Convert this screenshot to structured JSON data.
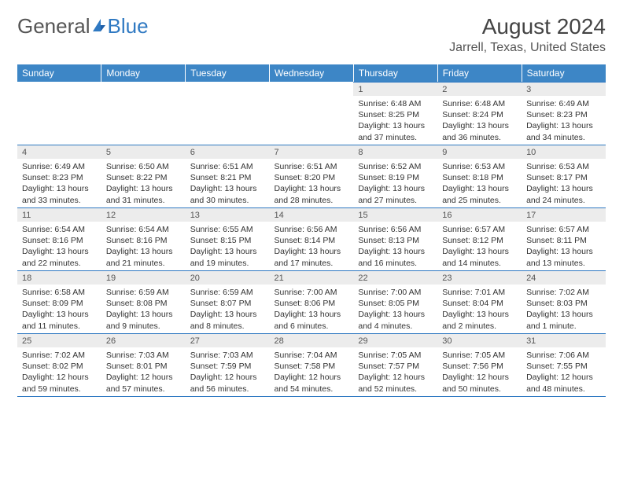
{
  "brand": {
    "part1": "General",
    "part2": "Blue"
  },
  "title": "August 2024",
  "location": "Jarrell, Texas, United States",
  "colors": {
    "header_bg": "#3d86c6",
    "accent": "#2f79c2",
    "daynum_bg": "#ececec",
    "text": "#333333"
  },
  "daysOfWeek": [
    "Sunday",
    "Monday",
    "Tuesday",
    "Wednesday",
    "Thursday",
    "Friday",
    "Saturday"
  ],
  "weeks": [
    [
      null,
      null,
      null,
      null,
      {
        "n": "1",
        "sr": "6:48 AM",
        "ss": "8:25 PM",
        "dl": "13 hours and 37 minutes."
      },
      {
        "n": "2",
        "sr": "6:48 AM",
        "ss": "8:24 PM",
        "dl": "13 hours and 36 minutes."
      },
      {
        "n": "3",
        "sr": "6:49 AM",
        "ss": "8:23 PM",
        "dl": "13 hours and 34 minutes."
      }
    ],
    [
      {
        "n": "4",
        "sr": "6:49 AM",
        "ss": "8:23 PM",
        "dl": "13 hours and 33 minutes."
      },
      {
        "n": "5",
        "sr": "6:50 AM",
        "ss": "8:22 PM",
        "dl": "13 hours and 31 minutes."
      },
      {
        "n": "6",
        "sr": "6:51 AM",
        "ss": "8:21 PM",
        "dl": "13 hours and 30 minutes."
      },
      {
        "n": "7",
        "sr": "6:51 AM",
        "ss": "8:20 PM",
        "dl": "13 hours and 28 minutes."
      },
      {
        "n": "8",
        "sr": "6:52 AM",
        "ss": "8:19 PM",
        "dl": "13 hours and 27 minutes."
      },
      {
        "n": "9",
        "sr": "6:53 AM",
        "ss": "8:18 PM",
        "dl": "13 hours and 25 minutes."
      },
      {
        "n": "10",
        "sr": "6:53 AM",
        "ss": "8:17 PM",
        "dl": "13 hours and 24 minutes."
      }
    ],
    [
      {
        "n": "11",
        "sr": "6:54 AM",
        "ss": "8:16 PM",
        "dl": "13 hours and 22 minutes."
      },
      {
        "n": "12",
        "sr": "6:54 AM",
        "ss": "8:16 PM",
        "dl": "13 hours and 21 minutes."
      },
      {
        "n": "13",
        "sr": "6:55 AM",
        "ss": "8:15 PM",
        "dl": "13 hours and 19 minutes."
      },
      {
        "n": "14",
        "sr": "6:56 AM",
        "ss": "8:14 PM",
        "dl": "13 hours and 17 minutes."
      },
      {
        "n": "15",
        "sr": "6:56 AM",
        "ss": "8:13 PM",
        "dl": "13 hours and 16 minutes."
      },
      {
        "n": "16",
        "sr": "6:57 AM",
        "ss": "8:12 PM",
        "dl": "13 hours and 14 minutes."
      },
      {
        "n": "17",
        "sr": "6:57 AM",
        "ss": "8:11 PM",
        "dl": "13 hours and 13 minutes."
      }
    ],
    [
      {
        "n": "18",
        "sr": "6:58 AM",
        "ss": "8:09 PM",
        "dl": "13 hours and 11 minutes."
      },
      {
        "n": "19",
        "sr": "6:59 AM",
        "ss": "8:08 PM",
        "dl": "13 hours and 9 minutes."
      },
      {
        "n": "20",
        "sr": "6:59 AM",
        "ss": "8:07 PM",
        "dl": "13 hours and 8 minutes."
      },
      {
        "n": "21",
        "sr": "7:00 AM",
        "ss": "8:06 PM",
        "dl": "13 hours and 6 minutes."
      },
      {
        "n": "22",
        "sr": "7:00 AM",
        "ss": "8:05 PM",
        "dl": "13 hours and 4 minutes."
      },
      {
        "n": "23",
        "sr": "7:01 AM",
        "ss": "8:04 PM",
        "dl": "13 hours and 2 minutes."
      },
      {
        "n": "24",
        "sr": "7:02 AM",
        "ss": "8:03 PM",
        "dl": "13 hours and 1 minute."
      }
    ],
    [
      {
        "n": "25",
        "sr": "7:02 AM",
        "ss": "8:02 PM",
        "dl": "12 hours and 59 minutes."
      },
      {
        "n": "26",
        "sr": "7:03 AM",
        "ss": "8:01 PM",
        "dl": "12 hours and 57 minutes."
      },
      {
        "n": "27",
        "sr": "7:03 AM",
        "ss": "7:59 PM",
        "dl": "12 hours and 56 minutes."
      },
      {
        "n": "28",
        "sr": "7:04 AM",
        "ss": "7:58 PM",
        "dl": "12 hours and 54 minutes."
      },
      {
        "n": "29",
        "sr": "7:05 AM",
        "ss": "7:57 PM",
        "dl": "12 hours and 52 minutes."
      },
      {
        "n": "30",
        "sr": "7:05 AM",
        "ss": "7:56 PM",
        "dl": "12 hours and 50 minutes."
      },
      {
        "n": "31",
        "sr": "7:06 AM",
        "ss": "7:55 PM",
        "dl": "12 hours and 48 minutes."
      }
    ]
  ],
  "labels": {
    "sunrise": "Sunrise:",
    "sunset": "Sunset:",
    "daylight": "Daylight:"
  }
}
